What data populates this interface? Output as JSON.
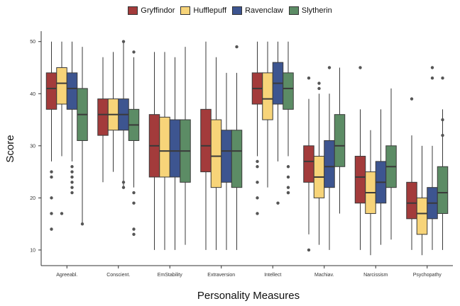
{
  "chart_data": {
    "type": "boxplot",
    "title": "",
    "xlabel": "Personality Measures",
    "ylabel": "Score",
    "ylim": [
      7,
      52
    ],
    "yticks": [
      10,
      20,
      30,
      40,
      50
    ],
    "legend_position": "top-center",
    "grid": false,
    "categories": [
      "Agreeabl.",
      "Conscient.",
      "EmStability",
      "Extraversion",
      "Intellect",
      "Machiav.",
      "Narcissism",
      "Psychopathy"
    ],
    "series": [
      {
        "name": "Gryffindor",
        "color": "#a33b3b",
        "boxes": [
          {
            "whislo": 27,
            "q1": 37,
            "med": 41,
            "q3": 44,
            "whishi": 50,
            "fliers": [
              25,
              24,
              20,
              17,
              14
            ]
          },
          {
            "whislo": 23,
            "q1": 32,
            "med": 36,
            "q3": 39,
            "whishi": 47,
            "fliers": []
          },
          {
            "whislo": 10,
            "q1": 24,
            "med": 30,
            "q3": 36,
            "whishi": 48,
            "fliers": []
          },
          {
            "whislo": 10,
            "q1": 25,
            "med": 30,
            "q3": 37,
            "whishi": 50,
            "fliers": []
          },
          {
            "whislo": 28,
            "q1": 38,
            "med": 41,
            "q3": 44,
            "whishi": 50,
            "fliers": [
              27,
              26,
              23,
              20,
              17
            ]
          },
          {
            "whislo": 13,
            "q1": 23,
            "med": 27,
            "q3": 30,
            "whishi": 39,
            "fliers": [
              43,
              10
            ]
          },
          {
            "whislo": 10,
            "q1": 19,
            "med": 24,
            "q3": 28,
            "whishi": 37,
            "fliers": [
              45
            ]
          },
          {
            "whislo": 10,
            "q1": 16,
            "med": 19,
            "q3": 23,
            "whishi": 32,
            "fliers": [
              39
            ]
          }
        ]
      },
      {
        "name": "Hufflepuff",
        "color": "#f7d479",
        "boxes": [
          {
            "whislo": 28,
            "q1": 38,
            "med": 42,
            "q3": 45,
            "whishi": 50,
            "fliers": [
              17
            ]
          },
          {
            "whislo": 25,
            "q1": 33,
            "med": 36,
            "q3": 39,
            "whishi": 48,
            "fliers": []
          },
          {
            "whislo": 10,
            "q1": 24,
            "med": 29,
            "q3": 35.5,
            "whishi": 48,
            "fliers": []
          },
          {
            "whislo": 10,
            "q1": 22,
            "med": 28,
            "q3": 35,
            "whishi": 47,
            "fliers": []
          },
          {
            "whislo": 22,
            "q1": 35,
            "med": 39,
            "q3": 44,
            "whishi": 50,
            "fliers": []
          },
          {
            "whislo": 11,
            "q1": 20,
            "med": 24,
            "q3": 28,
            "whishi": 40,
            "fliers": [
              42,
              41
            ]
          },
          {
            "whislo": 9,
            "q1": 17,
            "med": 21,
            "q3": 25,
            "whishi": 33,
            "fliers": []
          },
          {
            "whislo": 9,
            "q1": 13,
            "med": 17,
            "q3": 20,
            "whishi": 30,
            "fliers": []
          }
        ]
      },
      {
        "name": "Ravenclaw",
        "color": "#3d5590",
        "boxes": [
          {
            "whislo": 27,
            "q1": 37,
            "med": 41,
            "q3": 44,
            "whishi": 50,
            "fliers": [
              26,
              25,
              24,
              23,
              22,
              21
            ]
          },
          {
            "whislo": 22,
            "q1": 33,
            "med": 36,
            "q3": 39,
            "whishi": 50,
            "fliers": [
              50,
              23,
              22
            ]
          },
          {
            "whislo": 10,
            "q1": 24,
            "med": 29,
            "q3": 35,
            "whishi": 47,
            "fliers": []
          },
          {
            "whislo": 10,
            "q1": 23,
            "med": 29,
            "q3": 33,
            "whishi": 44,
            "fliers": []
          },
          {
            "whislo": 27,
            "q1": 38,
            "med": 42,
            "q3": 46,
            "whishi": 50,
            "fliers": [
              19
            ]
          },
          {
            "whislo": 10,
            "q1": 22,
            "med": 26,
            "q3": 31,
            "whishi": 40,
            "fliers": [
              45
            ]
          },
          {
            "whislo": 11,
            "q1": 19,
            "med": 23,
            "q3": 27,
            "whishi": 37,
            "fliers": []
          },
          {
            "whislo": 10,
            "q1": 16,
            "med": 19,
            "q3": 22,
            "whishi": 30,
            "fliers": [
              45,
              43
            ]
          }
        ]
      },
      {
        "name": "Slytherin",
        "color": "#5c8c65",
        "boxes": [
          {
            "whislo": 15,
            "q1": 31,
            "med": 36,
            "q3": 41,
            "whishi": 49,
            "fliers": [
              15
            ]
          },
          {
            "whislo": 22,
            "q1": 31,
            "med": 34,
            "q3": 37,
            "whishi": 47,
            "fliers": [
              48,
              21,
              19,
              14,
              13
            ]
          },
          {
            "whislo": 11,
            "q1": 23,
            "med": 29,
            "q3": 35,
            "whishi": 49,
            "fliers": []
          },
          {
            "whislo": 10,
            "q1": 22,
            "med": 29,
            "q3": 33,
            "whishi": 44,
            "fliers": [
              49
            ]
          },
          {
            "whislo": 28,
            "q1": 37,
            "med": 41,
            "q3": 44,
            "whishi": 50,
            "fliers": [
              26,
              24,
              22,
              21,
              21
            ]
          },
          {
            "whislo": 17,
            "q1": 26,
            "med": 30,
            "q3": 36,
            "whishi": 45,
            "fliers": []
          },
          {
            "whislo": 12,
            "q1": 22,
            "med": 26,
            "q3": 30,
            "whishi": 41,
            "fliers": []
          },
          {
            "whislo": 10,
            "q1": 17,
            "med": 21,
            "q3": 26,
            "whishi": 37,
            "fliers": [
              43,
              35,
              32
            ]
          }
        ]
      }
    ]
  }
}
